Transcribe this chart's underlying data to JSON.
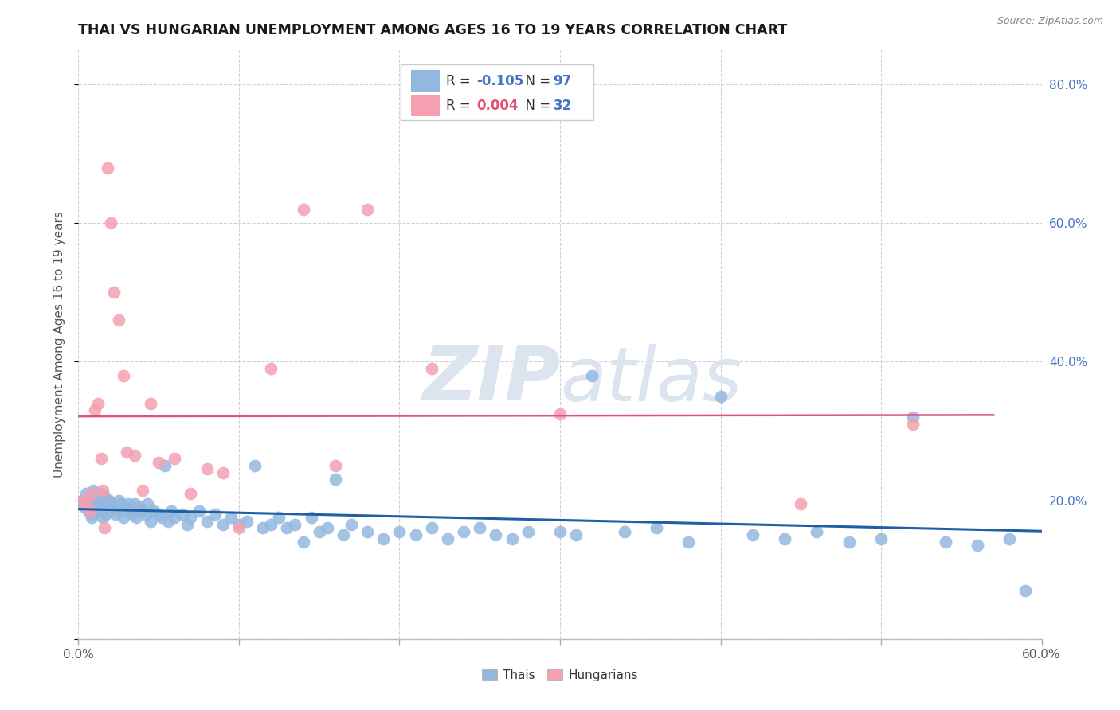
{
  "title": "THAI VS HUNGARIAN UNEMPLOYMENT AMONG AGES 16 TO 19 YEARS CORRELATION CHART",
  "source": "Source: ZipAtlas.com",
  "ylabel": "Unemployment Among Ages 16 to 19 years",
  "xlim": [
    0.0,
    0.6
  ],
  "ylim": [
    0.0,
    0.85
  ],
  "xticks": [
    0.0,
    0.1,
    0.2,
    0.3,
    0.4,
    0.5,
    0.6
  ],
  "yticks": [
    0.0,
    0.2,
    0.4,
    0.6,
    0.8
  ],
  "thai_R": -0.105,
  "thai_N": 97,
  "hung_R": 0.004,
  "hung_N": 32,
  "thai_color": "#93b8e0",
  "hung_color": "#f4a0b0",
  "thai_line_color": "#1f5fa6",
  "hung_line_color": "#e05080",
  "bg_color": "#ffffff",
  "grid_color": "#cccccc",
  "watermark_color": "#dce4f0",
  "right_ytick_labels": [
    "20.0%",
    "40.0%",
    "60.0%",
    "80.0%"
  ],
  "right_yticks": [
    0.2,
    0.4,
    0.6,
    0.8
  ],
  "thai_x": [
    0.002,
    0.004,
    0.005,
    0.006,
    0.007,
    0.008,
    0.008,
    0.009,
    0.009,
    0.01,
    0.011,
    0.012,
    0.013,
    0.014,
    0.015,
    0.015,
    0.016,
    0.017,
    0.018,
    0.019,
    0.02,
    0.021,
    0.022,
    0.023,
    0.025,
    0.026,
    0.027,
    0.028,
    0.03,
    0.031,
    0.032,
    0.034,
    0.035,
    0.036,
    0.038,
    0.04,
    0.042,
    0.043,
    0.045,
    0.047,
    0.05,
    0.052,
    0.054,
    0.056,
    0.058,
    0.06,
    0.065,
    0.068,
    0.07,
    0.075,
    0.08,
    0.085,
    0.09,
    0.095,
    0.1,
    0.105,
    0.11,
    0.115,
    0.12,
    0.125,
    0.13,
    0.135,
    0.14,
    0.145,
    0.15,
    0.155,
    0.16,
    0.165,
    0.17,
    0.18,
    0.19,
    0.2,
    0.21,
    0.22,
    0.23,
    0.24,
    0.25,
    0.26,
    0.27,
    0.28,
    0.3,
    0.31,
    0.32,
    0.34,
    0.36,
    0.38,
    0.4,
    0.42,
    0.44,
    0.46,
    0.48,
    0.5,
    0.52,
    0.54,
    0.56,
    0.58,
    0.59
  ],
  "thai_y": [
    0.2,
    0.19,
    0.21,
    0.185,
    0.195,
    0.205,
    0.175,
    0.215,
    0.18,
    0.195,
    0.2,
    0.185,
    0.19,
    0.21,
    0.195,
    0.175,
    0.205,
    0.18,
    0.195,
    0.2,
    0.185,
    0.195,
    0.19,
    0.18,
    0.2,
    0.185,
    0.195,
    0.175,
    0.19,
    0.195,
    0.185,
    0.18,
    0.195,
    0.175,
    0.19,
    0.185,
    0.18,
    0.195,
    0.17,
    0.185,
    0.18,
    0.175,
    0.25,
    0.17,
    0.185,
    0.175,
    0.18,
    0.165,
    0.175,
    0.185,
    0.17,
    0.18,
    0.165,
    0.175,
    0.165,
    0.17,
    0.25,
    0.16,
    0.165,
    0.175,
    0.16,
    0.165,
    0.14,
    0.175,
    0.155,
    0.16,
    0.23,
    0.15,
    0.165,
    0.155,
    0.145,
    0.155,
    0.15,
    0.16,
    0.145,
    0.155,
    0.16,
    0.15,
    0.145,
    0.155,
    0.155,
    0.15,
    0.38,
    0.155,
    0.16,
    0.14,
    0.35,
    0.15,
    0.145,
    0.155,
    0.14,
    0.145,
    0.32,
    0.14,
    0.135,
    0.145,
    0.07
  ],
  "hung_x": [
    0.003,
    0.005,
    0.007,
    0.008,
    0.01,
    0.012,
    0.014,
    0.015,
    0.016,
    0.018,
    0.02,
    0.022,
    0.025,
    0.028,
    0.03,
    0.035,
    0.04,
    0.045,
    0.05,
    0.06,
    0.07,
    0.08,
    0.09,
    0.1,
    0.12,
    0.14,
    0.16,
    0.18,
    0.22,
    0.3,
    0.45,
    0.52
  ],
  "hung_y": [
    0.2,
    0.195,
    0.185,
    0.21,
    0.33,
    0.34,
    0.26,
    0.215,
    0.16,
    0.68,
    0.6,
    0.5,
    0.46,
    0.38,
    0.27,
    0.265,
    0.215,
    0.34,
    0.255,
    0.26,
    0.21,
    0.245,
    0.24,
    0.16,
    0.39,
    0.62,
    0.25,
    0.62,
    0.39,
    0.325,
    0.195,
    0.31
  ]
}
